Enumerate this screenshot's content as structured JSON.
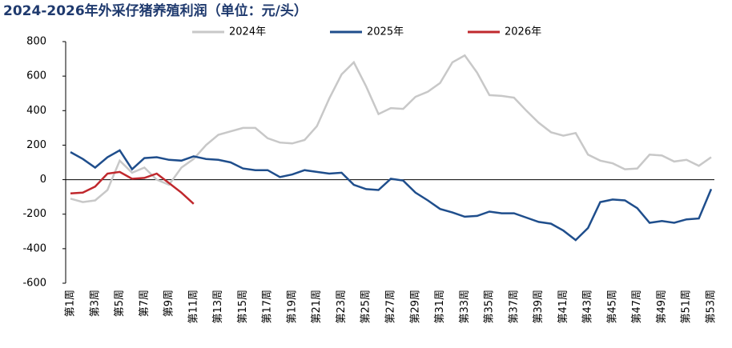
{
  "chart_data": {
    "type": "line",
    "title": "2024-2026年外采仔猪养殖利润（单位：元/头）",
    "categories": [
      "第1周",
      null,
      "第3周",
      null,
      "第5周",
      null,
      "第7周",
      null,
      "第9周",
      null,
      "第11周",
      null,
      "第13周",
      null,
      "第15周",
      null,
      "第17周",
      null,
      "第19周",
      null,
      "第21周",
      null,
      "第23周",
      null,
      "第25周",
      null,
      "第27周",
      null,
      "第29周",
      null,
      "第31周",
      null,
      "第33周",
      null,
      "第35周",
      null,
      "第37周",
      null,
      "第39周",
      null,
      "第41周",
      null,
      "第43周",
      null,
      "第45周",
      null,
      "第47周",
      null,
      "第49周",
      null,
      "第51周",
      null,
      "第53周"
    ],
    "series": [
      {
        "name": "2024年",
        "color": "#c8c8c8",
        "values": [
          -110,
          -130,
          -120,
          -60,
          110,
          40,
          70,
          0,
          -30,
          70,
          120,
          200,
          260,
          280,
          300,
          300,
          240,
          215,
          210,
          230,
          310,
          470,
          610,
          680,
          540,
          380,
          415,
          410,
          480,
          510,
          560,
          680,
          720,
          620,
          490,
          485,
          475,
          400,
          330,
          275,
          255,
          270,
          145,
          110,
          95,
          60,
          65,
          145,
          140,
          105,
          115,
          80,
          130
        ]
      },
      {
        "name": "2025年",
        "color": "#1f4e8c",
        "values": [
          160,
          120,
          70,
          130,
          170,
          60,
          125,
          130,
          115,
          110,
          135,
          120,
          115,
          100,
          65,
          55,
          55,
          15,
          30,
          55,
          45,
          35,
          40,
          -30,
          -55,
          -60,
          5,
          -5,
          -75,
          -120,
          -170,
          -190,
          -215,
          -210,
          -185,
          -195,
          -195,
          -220,
          -245,
          -255,
          -295,
          -350,
          -280,
          -130,
          -115,
          -120,
          -165,
          -250,
          -240,
          -250,
          -230,
          -225,
          -55
        ]
      },
      {
        "name": "2026年",
        "color": "#c0282d",
        "values": [
          -80,
          -75,
          -40,
          35,
          45,
          5,
          10,
          35,
          -20,
          -75,
          -140,
          null,
          null,
          null,
          null,
          null,
          null,
          null,
          null,
          null,
          null,
          null,
          null,
          null,
          null,
          null,
          null,
          null,
          null,
          null,
          null,
          null,
          null,
          null,
          null,
          null,
          null,
          null,
          null,
          null,
          null,
          null,
          null,
          null,
          null,
          null,
          null,
          null,
          null,
          null,
          null,
          null,
          null
        ]
      }
    ],
    "ylim": [
      -600,
      800
    ],
    "yticks": [
      -600,
      -400,
      -200,
      0,
      200,
      400,
      600,
      800
    ]
  }
}
